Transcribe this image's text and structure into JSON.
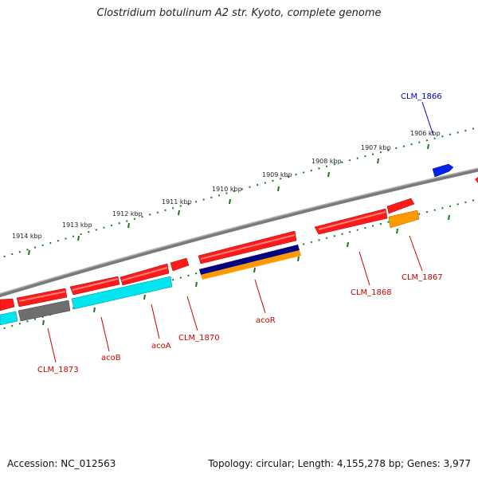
{
  "map": {
    "title": "Clostridium botulinum A2 str. Kyoto, complete genome",
    "accession": "Accession: NC_012563",
    "summary": "Topology: circular; Length: 4,155,278 bp; Genes: 3,977"
  },
  "scale_labels": [
    "1906 kbp",
    "1907 kbp",
    "1908 kbp",
    "1909 kbp",
    "1910 kbp",
    "1911 kbp",
    "1912 kbp",
    "1913 kbp",
    "1914 kbp"
  ],
  "gene_labels": [
    {
      "name": "CLM_1866",
      "strand": "plus"
    },
    {
      "name": "CLM_1867",
      "strand": "minus"
    },
    {
      "name": "CLM_1868",
      "strand": "minus"
    },
    {
      "name": "acoR",
      "strand": "minus"
    },
    {
      "name": "CLM_1870",
      "strand": "minus"
    },
    {
      "name": "acoA",
      "strand": "minus"
    },
    {
      "name": "acoB",
      "strand": "minus"
    },
    {
      "name": "CLM_1873",
      "strand": "minus"
    }
  ],
  "colors": {
    "backbone": "#8a8a8a",
    "cds": "#ff1a1a",
    "plus_label": "#0000cc",
    "minus_label": "#cc0000",
    "ticks": "#1a7a1a",
    "cyan": "#00e5ee",
    "gray": "#6e6e6e",
    "navy": "#000080",
    "orange": "#ff9900",
    "blue": "#0033ff"
  }
}
